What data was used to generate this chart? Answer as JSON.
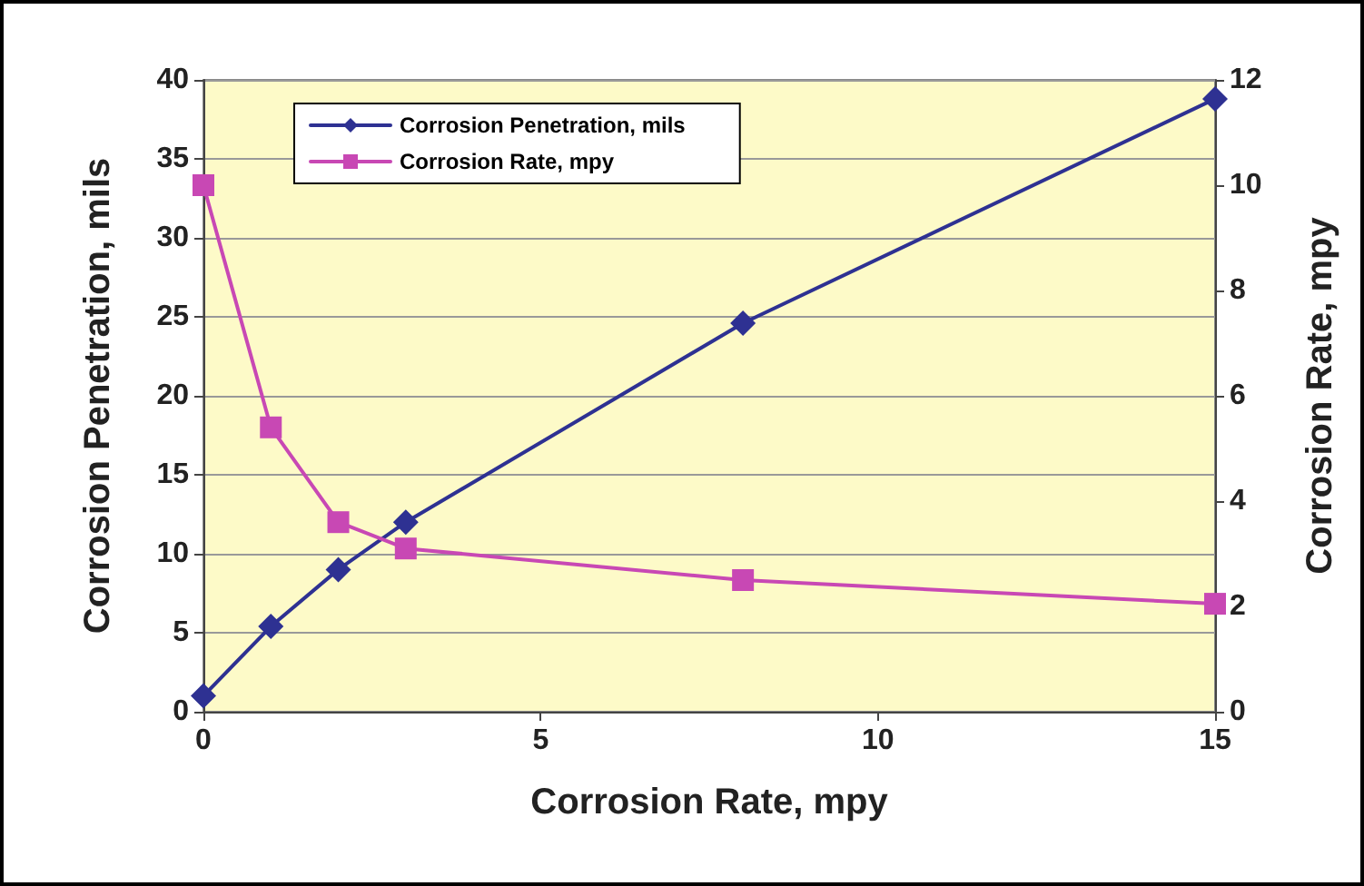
{
  "chart_data": {
    "type": "line",
    "xlabel": "Corrosion Rate, mpy",
    "ylabel": "Corrosion Penetration, mils",
    "y2label": "Corrosion Rate, mpy",
    "x": [
      0,
      1,
      2,
      3,
      8,
      15
    ],
    "series": [
      {
        "name": "Corrosion Penetration, mils",
        "color": "#2e3192",
        "marker": "diamond",
        "values": [
          1,
          5.4,
          9,
          12,
          24.6,
          38.8
        ]
      },
      {
        "name": "Corrosion Rate, mpy",
        "color": "#c848b4",
        "marker": "square",
        "axis": "y2",
        "values": [
          10,
          5.4,
          3.6,
          3.1,
          2.5,
          2.05
        ]
      }
    ],
    "xlim": [
      0,
      15
    ],
    "xticks": [
      0,
      5,
      10,
      15
    ],
    "ylim": [
      0,
      40
    ],
    "yticks": [
      0,
      5,
      10,
      15,
      20,
      25,
      30,
      35,
      40
    ],
    "y2lim": [
      0,
      12
    ],
    "y2ticks": [
      0,
      2,
      4,
      6,
      8,
      10,
      12
    ],
    "grid": "y",
    "legend": "top left"
  }
}
